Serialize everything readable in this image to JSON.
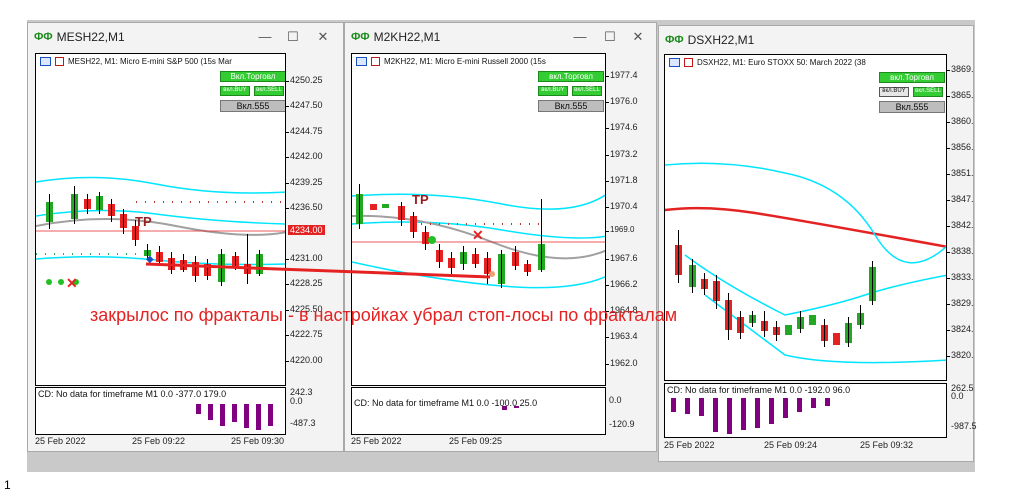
{
  "colors": {
    "bull": "#22a822",
    "bear": "#e52222",
    "band": "#00e5ff",
    "ma": "#a0a0a0",
    "trend_red": "#e52222",
    "hist": "#800080"
  },
  "windows": [
    {
      "title": "MESH22,M1",
      "info": "MESH22, M1:  Micro E-mini S&P 500 (15s Mar",
      "btn_trade": "Вкл.Торговл",
      "btn_buy": "вкл.BUY",
      "btn_sell": "вкл.SELL",
      "btn_vkl": "Вкл.555",
      "prices": [
        "4250.25",
        "4247.50",
        "4244.75",
        "4242.00",
        "4239.25",
        "4236.50",
        "4234.00",
        "4231.00",
        "4228.25",
        "4225.50",
        "4222.75",
        "4220.00"
      ],
      "current_price": "4234.00",
      "tp_label": "TP",
      "ind_caption": "CD: No data for timeframe M1 0.0 -377.0 179.0",
      "ind_axis": [
        "242.3",
        "0.0",
        "-487.3"
      ],
      "times": [
        "25 Feb 2022",
        "25 Feb 09:22",
        "25 Feb 09:30"
      ]
    },
    {
      "title": "M2KH22,M1",
      "info": "M2KH22, M1:  Micro E-mini Russell 2000 (15s",
      "btn_trade": "вкл.Торговл",
      "btn_buy": "вкл.BUY",
      "btn_sell": "вкл.SELL",
      "btn_vkl": "Вкл.555",
      "prices": [
        "1977.4",
        "1976.0",
        "1974.6",
        "1973.2",
        "1971.8",
        "1970.4",
        "1969.0",
        "1967.6",
        "1966.2",
        "1964.8",
        "1963.4",
        "1962.0"
      ],
      "tp_label": "TP",
      "ind_caption": "CD: No data for timeframe M1 0.0 -100.0 25.0",
      "ind_axis": [
        "0.0",
        "-120.9"
      ],
      "times": [
        "25 Feb 2022",
        "25 Feb 09:25"
      ]
    },
    {
      "title": "DSXH22,M1",
      "info": "DSXH22, M1:  Euro STOXX 50: March 2022 (38",
      "btn_trade": "вкл.Торговл",
      "btn_buy": "вкл.BUY",
      "btn_sell": "вкл.SELL",
      "btn_vkl": "Вкл.555",
      "prices": [
        "3869.",
        "3865.",
        "3860.",
        "3856.",
        "3851.",
        "3847.",
        "3842.",
        "3838.",
        "3833.",
        "3829.",
        "3824.",
        "3820."
      ],
      "ind_caption": "CD: No data for timeframe M1 0.0 -192.0 96.0",
      "ind_axis": [
        "262.5",
        "0.0",
        "-987.5"
      ],
      "times": [
        "25 Feb 2022",
        "25 Feb 09:24",
        "25 Feb 09:32"
      ]
    }
  ],
  "annotation": "закрылос по фракталы - в настройках убрал стоп-лосы по фракталам",
  "footer": "1"
}
